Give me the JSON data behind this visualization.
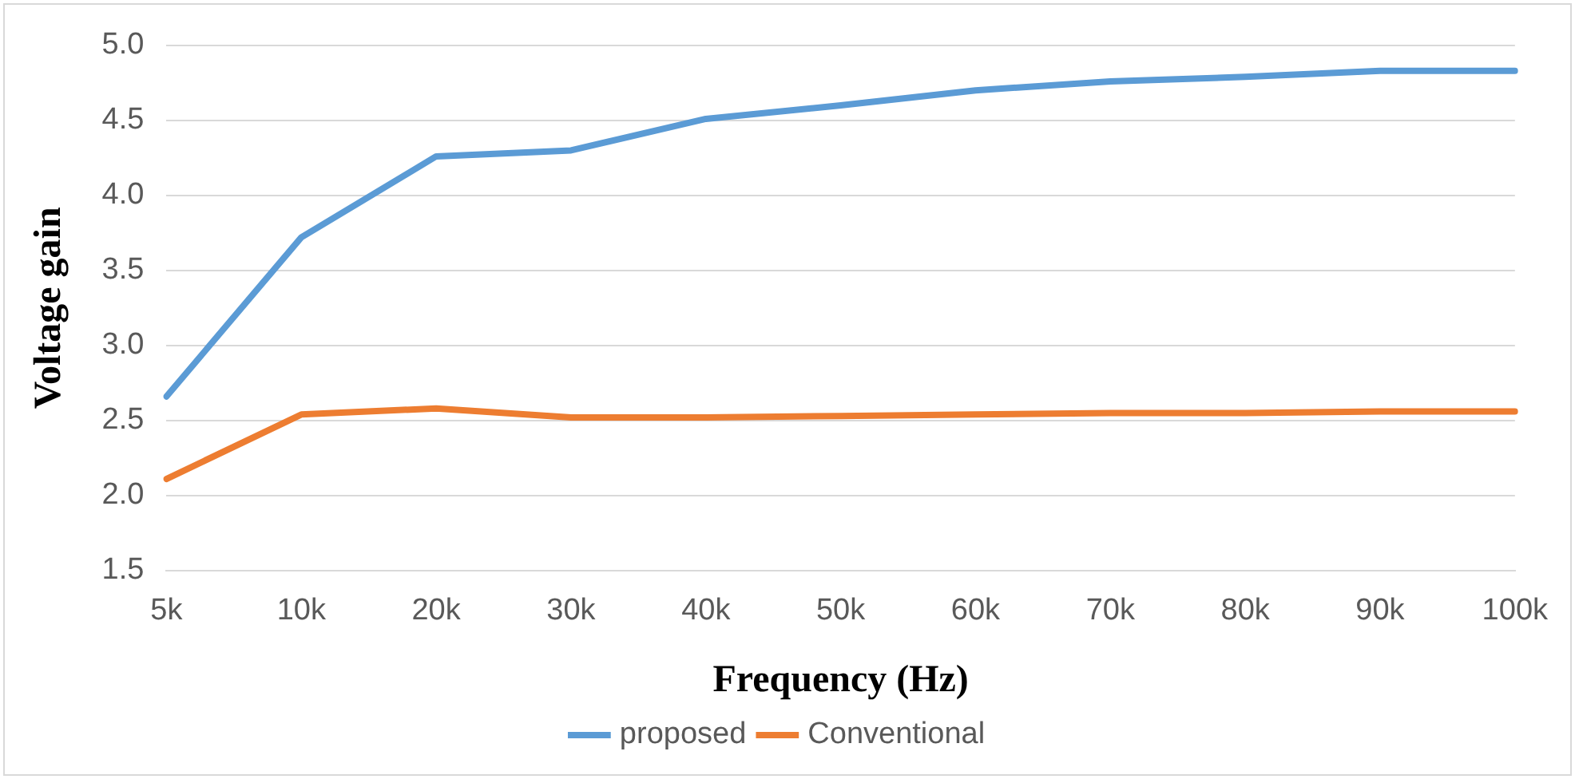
{
  "chart_data": {
    "type": "line",
    "xlabel": "Frequency (Hz)",
    "ylabel": "Voltage gain",
    "categories": [
      "5k",
      "10k",
      "20k",
      "30k",
      "40k",
      "50k",
      "60k",
      "70k",
      "80k",
      "90k",
      "100k"
    ],
    "series": [
      {
        "name": "proposed",
        "color": "#5b9bd5",
        "values": [
          2.66,
          3.72,
          4.26,
          4.3,
          4.51,
          4.6,
          4.7,
          4.76,
          4.79,
          4.83,
          4.83
        ]
      },
      {
        "name": "Conventional",
        "color": "#ed7d31",
        "values": [
          2.11,
          2.54,
          2.58,
          2.52,
          2.52,
          2.53,
          2.54,
          2.55,
          2.55,
          2.56,
          2.56
        ]
      }
    ],
    "ylim": [
      1.5,
      5.0
    ],
    "yticks": [
      {
        "value": 1.5,
        "label": "1.5"
      },
      {
        "value": 2,
        "label": "2.0"
      },
      {
        "value": 2.5,
        "label": "2.5"
      },
      {
        "value": 3,
        "label": "3.0"
      },
      {
        "value": 3.5,
        "label": "3.5"
      },
      {
        "value": 4,
        "label": "4.0"
      },
      {
        "value": 4.5,
        "label": "4.5"
      },
      {
        "value": 5,
        "label": "5.0"
      }
    ],
    "grid": "y",
    "legend": "bottom",
    "marker": "none",
    "line_style": "solid"
  }
}
